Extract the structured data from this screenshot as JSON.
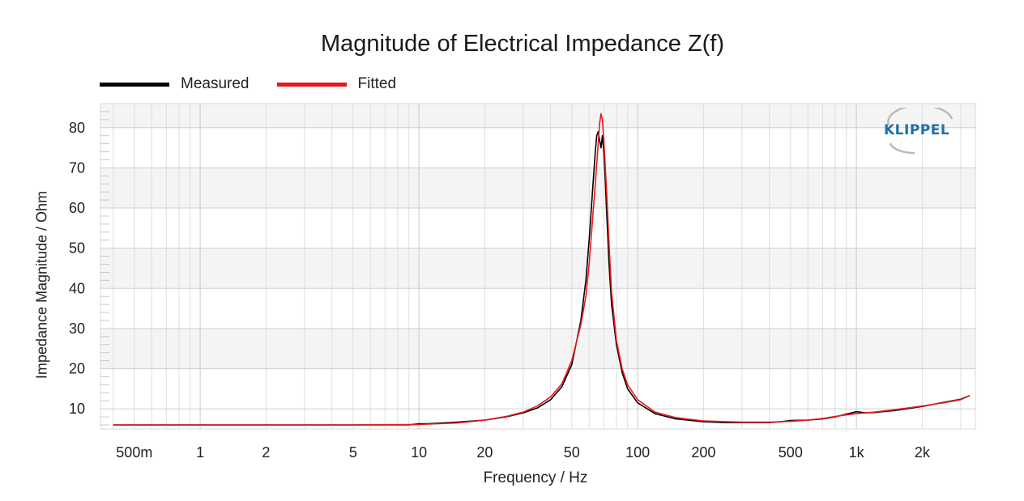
{
  "chart_data": {
    "type": "line",
    "title": "Magnitude of Electrical Impedance Z(f)",
    "xlabel": "Frequency / Hz",
    "ylabel": "Impedance Magnitude / Ohm",
    "xscale": "log",
    "xlim": [
      0.35,
      3500
    ],
    "ylim": [
      5,
      86
    ],
    "grid": true,
    "legend_position": "top-left",
    "x_ticks": [
      {
        "value": 0.5,
        "label": "500m"
      },
      {
        "value": 1,
        "label": "1"
      },
      {
        "value": 2,
        "label": "2"
      },
      {
        "value": 5,
        "label": "5"
      },
      {
        "value": 10,
        "label": "10"
      },
      {
        "value": 20,
        "label": "20"
      },
      {
        "value": 50,
        "label": "50"
      },
      {
        "value": 100,
        "label": "100"
      },
      {
        "value": 200,
        "label": "200"
      },
      {
        "value": 500,
        "label": "500"
      },
      {
        "value": 1000,
        "label": "1k"
      },
      {
        "value": 2000,
        "label": "2k"
      }
    ],
    "y_ticks": [
      10,
      20,
      30,
      40,
      50,
      60,
      70,
      80
    ],
    "series": [
      {
        "name": "Measured",
        "color": "#000000",
        "x": [
          0.4,
          1,
          5,
          9,
          10,
          11,
          15,
          20,
          25,
          30,
          35,
          40,
          45,
          50,
          55,
          58,
          60,
          62,
          64,
          65,
          66,
          67,
          68,
          69,
          70,
          71,
          72,
          74,
          76,
          80,
          85,
          90,
          100,
          120,
          150,
          200,
          250,
          300,
          400,
          450,
          500,
          600,
          700,
          800,
          900,
          1000,
          1100,
          1200,
          1500,
          2000,
          2500,
          3000,
          3300
        ],
        "y": [
          6,
          6,
          6,
          6,
          6.3,
          6.3,
          6.7,
          7.2,
          8,
          9,
          10.3,
          12.3,
          15.5,
          21,
          32,
          42,
          52,
          63,
          74,
          78,
          79,
          77,
          75,
          78,
          74,
          68,
          60,
          46,
          36,
          26,
          19,
          15,
          11.5,
          8.8,
          7.5,
          6.8,
          6.6,
          6.6,
          6.6,
          6.8,
          7.1,
          7.2,
          7.5,
          8,
          8.7,
          9.3,
          9,
          9.1,
          9.6,
          10.6,
          11.6,
          12.4,
          13.3
        ]
      },
      {
        "name": "Fitted",
        "color": "#e8191e",
        "x": [
          0.4,
          1,
          5,
          10,
          15,
          20,
          25,
          30,
          35,
          40,
          45,
          50,
          55,
          58,
          60,
          62,
          64,
          66,
          67,
          68,
          69,
          70,
          72,
          74,
          76,
          80,
          85,
          90,
          100,
          120,
          150,
          200,
          300,
          400,
          500,
          600,
          700,
          800,
          900,
          1000,
          1100,
          1200,
          1500,
          2000,
          2500,
          3000,
          3300
        ],
        "y": [
          6,
          6,
          6,
          6.1,
          6.5,
          7.2,
          8.1,
          9.2,
          10.8,
          13,
          16.2,
          22,
          31,
          38,
          46,
          56,
          66,
          76,
          81,
          83.5,
          82,
          77,
          65,
          51,
          39,
          27,
          20,
          16,
          12.3,
          9.2,
          7.8,
          7,
          6.7,
          6.7,
          6.9,
          7.2,
          7.6,
          8.1,
          8.5,
          8.8,
          9,
          9.2,
          9.8,
          10.7,
          11.5,
          12.3,
          13.3
        ]
      }
    ]
  },
  "logo_text": "KLIPPEL"
}
